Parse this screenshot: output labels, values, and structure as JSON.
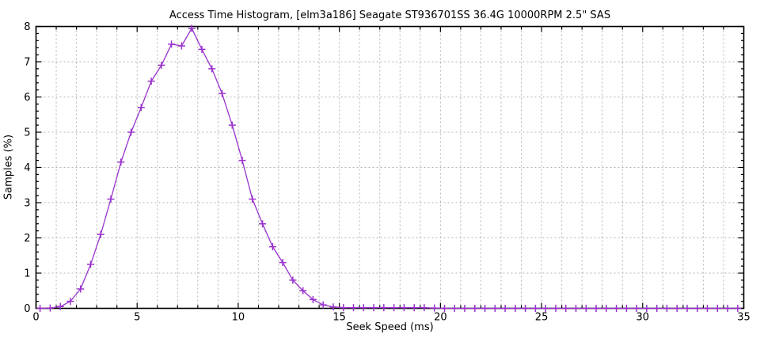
{
  "title": "Access Time Histogram, [elm3a186] Seagate ST936701SS 36.4G 10000RPM 2.5\" SAS",
  "colors": {
    "line": "#9932cc",
    "grid": "#b3b3b3",
    "axis": "#000000",
    "text": "#000000",
    "background": "#ffffff"
  },
  "chart_data": {
    "type": "line",
    "title": "Access Time Histogram, [elm3a186] Seagate ST936701SS 36.4G 10000RPM 2.5\" SAS",
    "xlabel": "Seek Speed (ms)",
    "ylabel": "Samples (%)",
    "xlim": [
      0,
      35
    ],
    "ylim": [
      0,
      8
    ],
    "x_tick_values": [
      0,
      5,
      10,
      15,
      20,
      25,
      30,
      35
    ],
    "x_tick_labels": [
      "0",
      "5",
      "10",
      "15",
      "20",
      "25",
      "30",
      "35"
    ],
    "y_tick_values": [
      0,
      1,
      2,
      3,
      4,
      5,
      6,
      7,
      8
    ],
    "y_tick_labels": [
      "0",
      "1",
      "2",
      "3",
      "4",
      "5",
      "6",
      "7",
      "8"
    ],
    "x_minor_step": 1,
    "y_minor_step": 0.2,
    "grid": "dotted gray; vertical every 1 ms, horizontal every 1 %",
    "legend_position": "none",
    "marker": "plus",
    "series_name": "Samples (%) vs Seek Speed (ms)",
    "x": [
      0.2,
      0.7,
      1.2,
      1.7,
      2.2,
      2.7,
      3.2,
      3.7,
      4.2,
      4.7,
      5.2,
      5.7,
      6.2,
      6.7,
      7.2,
      7.7,
      8.2,
      8.7,
      9.2,
      9.7,
      10.2,
      10.7,
      11.2,
      11.7,
      12.2,
      12.7,
      13.2,
      13.7,
      14.2,
      14.7,
      15.2,
      15.7,
      16.2,
      16.7,
      17.2,
      17.7,
      18.2,
      18.7,
      19.2,
      19.7,
      20.2,
      20.7,
      21.2,
      21.7,
      22.2,
      22.7,
      23.2,
      23.7,
      24.2,
      24.7,
      25.2,
      25.7,
      26.2,
      26.7,
      27.2,
      27.7,
      28.2,
      28.7,
      29.2,
      29.7,
      30.2,
      30.7,
      31.2,
      31.7,
      32.2,
      32.7,
      33.2,
      33.7,
      34.2,
      34.7
    ],
    "y": [
      0,
      0.01,
      0.05,
      0.2,
      0.55,
      1.25,
      2.1,
      3.1,
      4.15,
      5.0,
      5.7,
      6.45,
      6.9,
      7.5,
      7.45,
      7.95,
      7.35,
      6.8,
      6.1,
      5.2,
      4.2,
      3.1,
      2.4,
      1.75,
      1.3,
      0.8,
      0.5,
      0.25,
      0.1,
      0.04,
      0.02,
      0.02,
      0.02,
      0.02,
      0.02,
      0.02,
      0.02,
      0.02,
      0.02,
      0.01,
      0,
      0,
      0,
      0,
      0,
      0,
      0,
      0,
      0,
      0,
      0,
      0,
      0,
      0,
      0,
      0,
      0,
      0,
      0,
      0,
      0,
      0,
      0,
      0,
      0,
      0,
      0,
      0,
      0,
      0
    ]
  }
}
